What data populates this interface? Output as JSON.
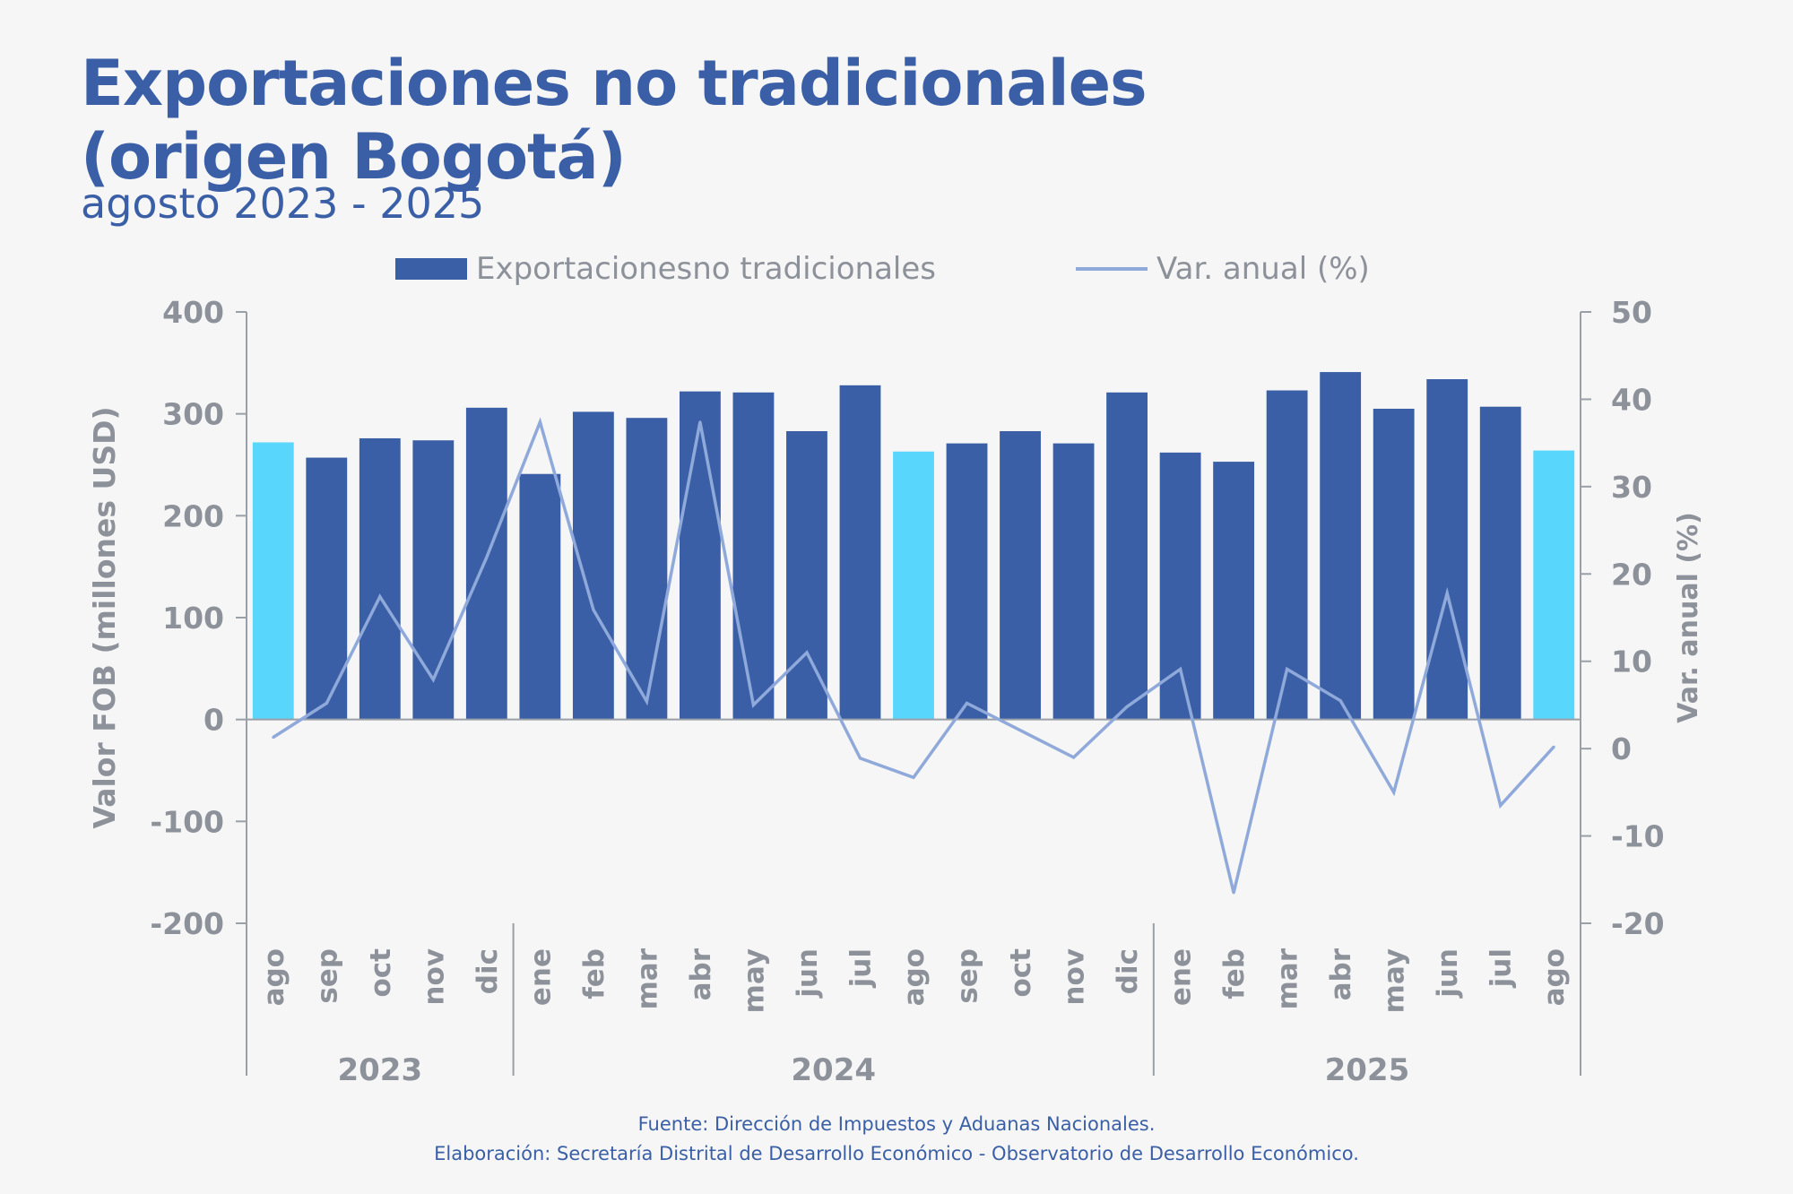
{
  "header": {
    "title_line1": "Exportaciones no tradicionales",
    "title_line2": "(origen Bogotá)",
    "subtitle": "agosto 2023 - 2025"
  },
  "footer": {
    "source": "Fuente: Dirección de Impuestos y Aduanas Nacionales.",
    "credit": "Elaboración: Secretaría Distrital de Desarrollo Económico - Observatorio de Desarrollo Económico."
  },
  "colors": {
    "bar": "#3a5fa6",
    "bar_highlight": "#59d6fb",
    "line": "#8fa9da",
    "axis_text": "#8c919a",
    "axis_line": "#9aa0a8"
  },
  "chart_data": {
    "type": "bar",
    "categories": [
      "ago",
      "sep",
      "oct",
      "nov",
      "dic",
      "ene",
      "feb",
      "mar",
      "abr",
      "may",
      "jun",
      "jul",
      "ago",
      "sep",
      "oct",
      "nov",
      "dic",
      "ene",
      "feb",
      "mar",
      "abr",
      "may",
      "jun",
      "jul",
      "ago"
    ],
    "year_groups": [
      {
        "label": "2023",
        "start": 0,
        "end": 4
      },
      {
        "label": "2024",
        "start": 5,
        "end": 16
      },
      {
        "label": "2025",
        "start": 17,
        "end": 24
      }
    ],
    "highlighted_indices": [
      0,
      12,
      24
    ],
    "series": [
      {
        "name": "Exportacionesno tradicionales",
        "type": "bar",
        "axis": "left",
        "values": [
          272,
          257,
          276,
          274,
          306,
          241,
          302,
          296,
          322,
          321,
          283,
          328,
          263,
          271,
          283,
          271,
          321,
          262,
          253,
          323,
          341,
          305,
          334,
          307,
          264
        ]
      },
      {
        "name": "Var. anual (%)",
        "type": "line",
        "axis": "right",
        "values": [
          1.3,
          5.2,
          17.4,
          7.9,
          21.9,
          37.4,
          15.9,
          5.4,
          37.4,
          5.0,
          11.0,
          -1.1,
          -3.3,
          5.2,
          2.1,
          -1.0,
          4.8,
          9.1,
          -16.5,
          9.1,
          5.5,
          -5.0,
          17.8,
          -6.5,
          0.2
        ]
      }
    ],
    "ylabel": "Valor FOB (millones USD)",
    "ylim": [
      -200,
      400
    ],
    "yticks": [
      400,
      300,
      200,
      100,
      0,
      -100,
      -200
    ],
    "y2label": "Var. anual (%)",
    "y2lim": [
      -20,
      50
    ],
    "y2ticks": [
      50,
      40,
      30,
      20,
      10,
      0,
      -10,
      -20
    ],
    "legend_position": "top",
    "grid": false
  }
}
